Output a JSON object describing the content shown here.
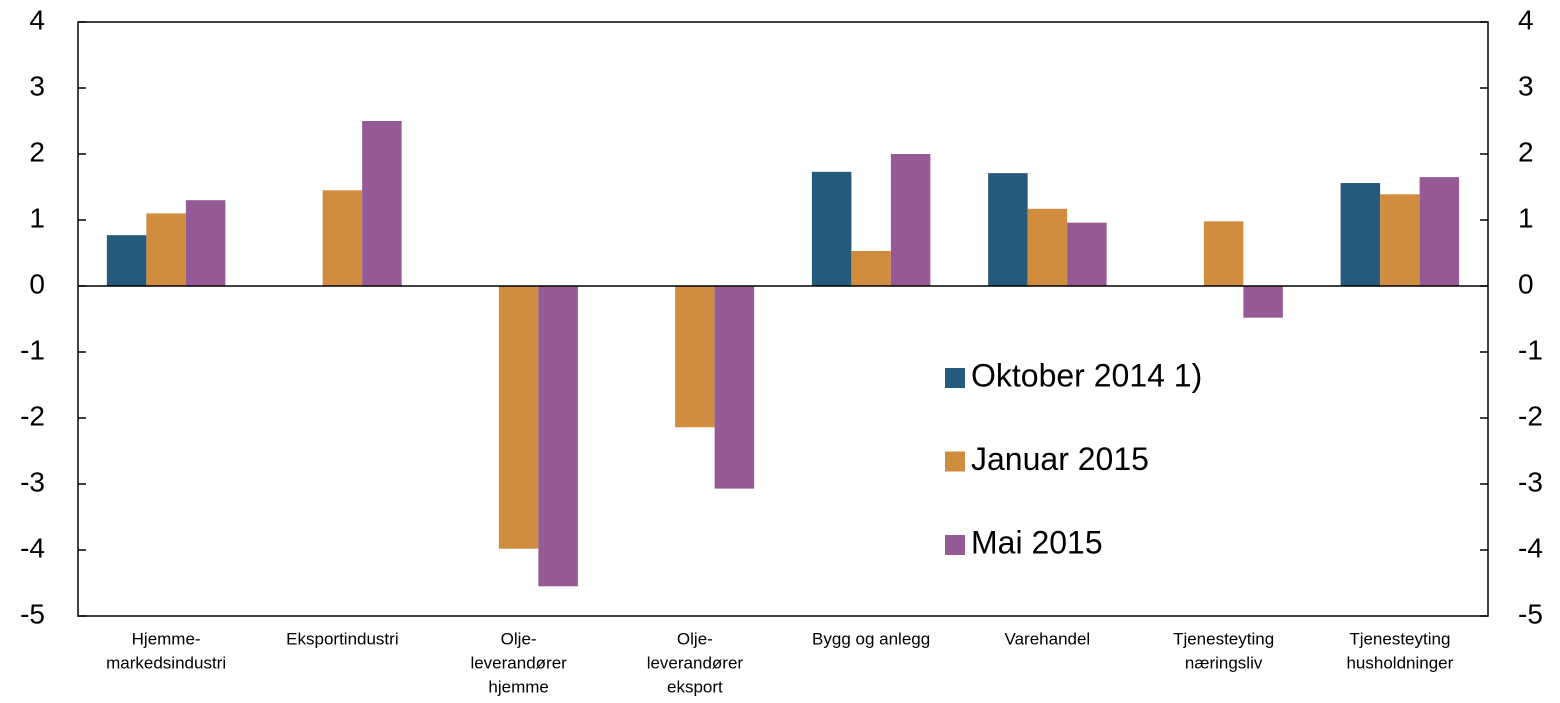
{
  "chart_data": {
    "type": "bar",
    "categories": [
      [
        "Hjemme-",
        "markedsindustri"
      ],
      [
        "Eksportindustri"
      ],
      [
        "Olje-",
        "leverandører",
        "hjemme"
      ],
      [
        "Olje-",
        "leverandører",
        "eksport"
      ],
      [
        "Bygg og anlegg"
      ],
      [
        "Varehandel"
      ],
      [
        "Tjenesteyting",
        "næringsliv"
      ],
      [
        "Tjenesteyting",
        "husholdninger"
      ]
    ],
    "series": [
      {
        "name": "Oktober 2014 1)",
        "color": "#245a7b",
        "values": [
          0.77,
          null,
          null,
          null,
          1.73,
          1.71,
          null,
          1.56
        ]
      },
      {
        "name": "Januar 2015",
        "color": "#d08c3f",
        "values": [
          1.1,
          1.45,
          -3.98,
          -2.14,
          0.53,
          1.17,
          0.98,
          1.39
        ]
      },
      {
        "name": "Mai 2015",
        "color": "#965b96",
        "values": [
          1.3,
          2.5,
          -4.55,
          -3.07,
          2.0,
          0.96,
          -0.48,
          1.65
        ]
      }
    ],
    "ylim": [
      -5,
      4
    ],
    "yticks": [
      -5,
      -4,
      -3,
      -2,
      -1,
      0,
      1,
      2,
      3,
      4
    ],
    "y2lim": [
      -5,
      4
    ],
    "y2ticks": [
      -5,
      -4,
      -3,
      -2,
      -1,
      0,
      1,
      2,
      3,
      4
    ],
    "grid": false,
    "legend_position": "right"
  }
}
